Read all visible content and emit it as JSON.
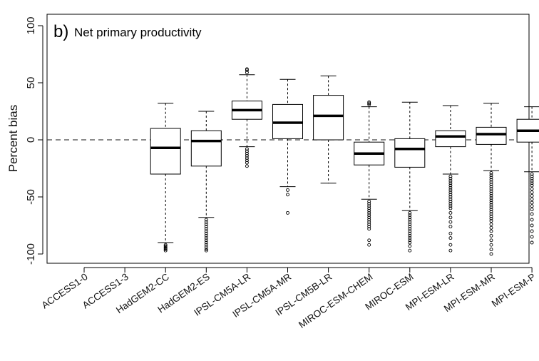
{
  "chart_data": {
    "type": "boxplot",
    "panel_label": "b)",
    "title": "Net primary productivity",
    "xlabel": "",
    "ylabel": "Percent bias",
    "ylim": [
      -105,
      105
    ],
    "yticks": [
      -100,
      -50,
      0,
      50,
      100
    ],
    "reference_line": 0,
    "grid": false,
    "categories": [
      "ACCESS1-0",
      "ACCESS1-3",
      "HadGEM2-CC",
      "HadGEM2-ES",
      "IPSL-CM5A-LR",
      "IPSL-CM5A-MR",
      "IPSL-CM5B-LR",
      "MIROC-ESM-CHEM",
      "MIROC-ESM",
      "MPI-ESM-LR",
      "MPI-ESM-MR",
      "MPI-ESM-P"
    ],
    "boxes": [
      null,
      null,
      {
        "whisker_low": -90,
        "q1": -30,
        "median": -7,
        "q3": 10,
        "whisker_high": 32,
        "outliers": [
          -92,
          -93,
          -94,
          -95,
          -96,
          -97
        ]
      },
      {
        "whisker_low": -68,
        "q1": -23,
        "median": -1,
        "q3": 8,
        "whisker_high": 25,
        "outliers": [
          -70,
          -72,
          -74,
          -76,
          -78,
          -80,
          -82,
          -84,
          -86,
          -88,
          -90,
          -92,
          -94,
          -96,
          -97
        ]
      },
      {
        "whisker_low": -6,
        "q1": 18,
        "median": 26,
        "q3": 34,
        "whisker_high": 57,
        "outliers": [
          -8,
          -10,
          -12,
          -14,
          -16,
          -18,
          -20,
          -23,
          59,
          61,
          62
        ]
      },
      {
        "whisker_low": -41,
        "q1": 1,
        "median": 15,
        "q3": 31,
        "whisker_high": 53,
        "outliers": [
          -44,
          -48,
          -64
        ]
      },
      {
        "whisker_low": -38,
        "q1": 0,
        "median": 21,
        "q3": 39,
        "whisker_high": 56,
        "outliers": []
      },
      {
        "whisker_low": -52,
        "q1": -22,
        "median": -12,
        "q3": -2,
        "whisker_high": 29,
        "outliers": [
          -54,
          -56,
          -58,
          -60,
          -62,
          -64,
          -66,
          -68,
          -70,
          -72,
          -74,
          -76,
          -78,
          -88,
          -92,
          31,
          32,
          33
        ]
      },
      {
        "whisker_low": -62,
        "q1": -24,
        "median": -8,
        "q3": 1,
        "whisker_high": 33,
        "outliers": [
          -64,
          -66,
          -68,
          -70,
          -72,
          -74,
          -76,
          -78,
          -80,
          -82,
          -84,
          -86,
          -88,
          -90,
          -93,
          -97
        ]
      },
      {
        "whisker_low": -30,
        "q1": -6,
        "median": 3,
        "q3": 8,
        "whisker_high": 30,
        "outliers": [
          -32,
          -34,
          -36,
          -38,
          -40,
          -42,
          -44,
          -46,
          -48,
          -50,
          -52,
          -54,
          -56,
          -58,
          -60,
          -64,
          -68,
          -72,
          -76,
          -82,
          -86,
          -92,
          -97
        ]
      },
      {
        "whisker_low": -27,
        "q1": -4,
        "median": 5,
        "q3": 11,
        "whisker_high": 32,
        "outliers": [
          -29,
          -31,
          -33,
          -35,
          -37,
          -39,
          -41,
          -43,
          -45,
          -47,
          -49,
          -51,
          -53,
          -55,
          -57,
          -59,
          -61,
          -63,
          -65,
          -67,
          -69,
          -71,
          -74,
          -77,
          -80,
          -84,
          -88,
          -92,
          -96,
          -100
        ]
      },
      {
        "whisker_low": -28,
        "q1": -2,
        "median": 8,
        "q3": 18,
        "whisker_high": 29,
        "outliers": [
          -30,
          -32,
          -34,
          -36,
          -38,
          -40,
          -43,
          -46,
          -49,
          -52,
          -55,
          -58,
          -61,
          -65,
          -70,
          -75,
          -80,
          -85,
          -90
        ]
      }
    ]
  }
}
